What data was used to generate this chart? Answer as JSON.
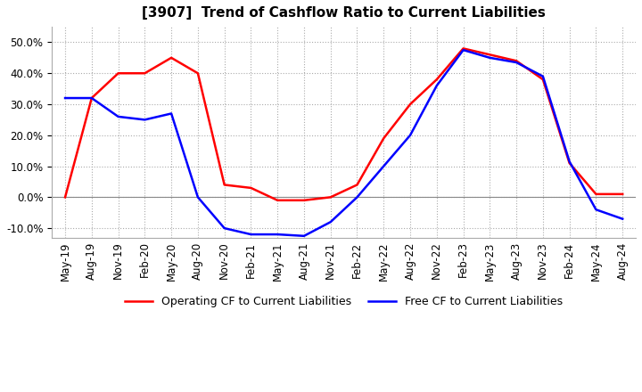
{
  "title": "[3907]  Trend of Cashflow Ratio to Current Liabilities",
  "legend_labels": [
    "Operating CF to Current Liabilities",
    "Free CF to Current Liabilities"
  ],
  "line_colors": [
    "red",
    "blue"
  ],
  "ylim": [
    -0.13,
    0.55
  ],
  "yticks": [
    -0.1,
    0.0,
    0.1,
    0.2,
    0.3,
    0.4,
    0.5
  ],
  "x_labels": [
    "May-19",
    "Aug-19",
    "Nov-19",
    "Feb-20",
    "May-20",
    "Aug-20",
    "Nov-20",
    "Feb-21",
    "May-21",
    "Aug-21",
    "Nov-21",
    "Feb-22",
    "May-22",
    "Aug-22",
    "Nov-22",
    "Feb-23",
    "May-23",
    "Aug-23",
    "Nov-23",
    "Feb-24",
    "May-24",
    "Aug-24"
  ],
  "operating_cf": [
    0.0,
    0.32,
    0.4,
    0.4,
    0.45,
    0.4,
    0.04,
    0.03,
    -0.01,
    -0.01,
    0.0,
    0.04,
    0.19,
    0.3,
    0.38,
    0.48,
    0.46,
    0.44,
    0.38,
    0.11,
    0.01,
    0.01
  ],
  "free_cf": [
    0.32,
    0.32,
    0.26,
    0.25,
    0.27,
    0.0,
    -0.1,
    -0.12,
    -0.12,
    -0.125,
    -0.08,
    0.0,
    0.1,
    0.2,
    0.36,
    0.475,
    0.45,
    0.435,
    0.39,
    0.115,
    -0.04,
    -0.07
  ],
  "background_color": "#ffffff",
  "grid_color": "#aaaaaa",
  "title_fontsize": 11,
  "tick_fontsize": 8.5
}
